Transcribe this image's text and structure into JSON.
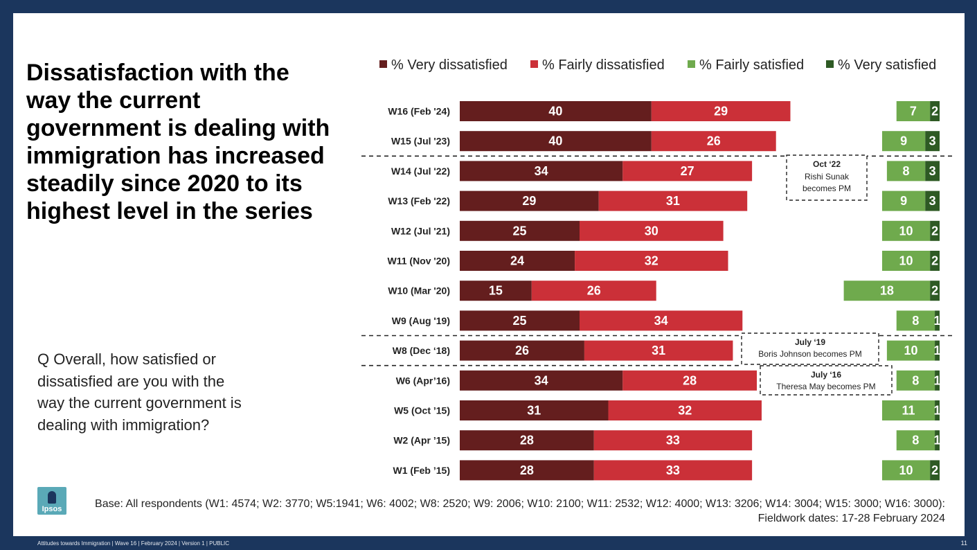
{
  "title": "Dissatisfaction with the way the current government is dealing with immigration has increased steadily since 2020 to its highest level in the series",
  "question": "Q Overall, how satisfied or dissatisfied are you with the way the current government is dealing with immigration?",
  "base_note": {
    "line1": "Base: All respondents (W1: 4574; W2: 3770; W5:1941; W6: 4002; W8: 2520; W9: 2006; W10: 2100; W11: 2532; W12: 4000; W13: 3206; W14: 3004; W15: 3000; W16: 3000):",
    "line2": "Fieldwork dates: 17-28 February 2024"
  },
  "logo": {
    "text": "Ipsos",
    "color": "#5aa9b7"
  },
  "footer": {
    "left": "Attitudes towards Immigration | Wave 16 | February 2024 | Version 1 | PUBLIC",
    "page_number": "11"
  },
  "annotations": [
    {
      "after": "W15 (Jul '23)",
      "title": "Oct ‘22",
      "text": "Rishi Sunak becomes PM"
    },
    {
      "after": "W9 (Aug '19)",
      "title": "July ‘19",
      "text": "Boris Johnson  becomes PM"
    },
    {
      "after": "W8 (Dec ‘18)",
      "title": "July ‘16",
      "text": "Theresa  May becomes PM"
    }
  ],
  "chart_data": {
    "type": "bar",
    "orientation": "horizontal",
    "stacked": true,
    "legend_position": "top",
    "categories": [
      "W16 (Feb '24)",
      "W15 (Jul '23)",
      "W14 (Jul '22)",
      "W13 (Feb '22)",
      "W12 (Jul '21)",
      "W11 (Nov '20)",
      "W10 (Mar '20)",
      "W9 (Aug '19)",
      "W8 (Dec ‘18)",
      "W6 (Apr’16)",
      "W5 (Oct ’15)",
      "W2 (Apr ’15)",
      "W1 (Feb ’15)"
    ],
    "series": [
      {
        "name": "% Very dissatisfied",
        "color": "#641e1e",
        "values": [
          40,
          40,
          34,
          29,
          25,
          24,
          15,
          25,
          26,
          34,
          31,
          28,
          28
        ]
      },
      {
        "name": "% Fairly dissatisfied",
        "color": "#cb3038",
        "values": [
          29,
          26,
          27,
          31,
          30,
          32,
          26,
          34,
          31,
          28,
          32,
          33,
          33
        ]
      },
      {
        "name": "% Fairly satisfied",
        "color": "#6faa4d",
        "values": [
          7,
          9,
          8,
          9,
          10,
          10,
          18,
          8,
          10,
          8,
          11,
          8,
          10
        ]
      },
      {
        "name": "% Very satisfied",
        "color": "#2e5a24",
        "values": [
          2,
          3,
          3,
          3,
          2,
          2,
          2,
          1,
          1,
          1,
          1,
          1,
          2
        ]
      }
    ]
  }
}
